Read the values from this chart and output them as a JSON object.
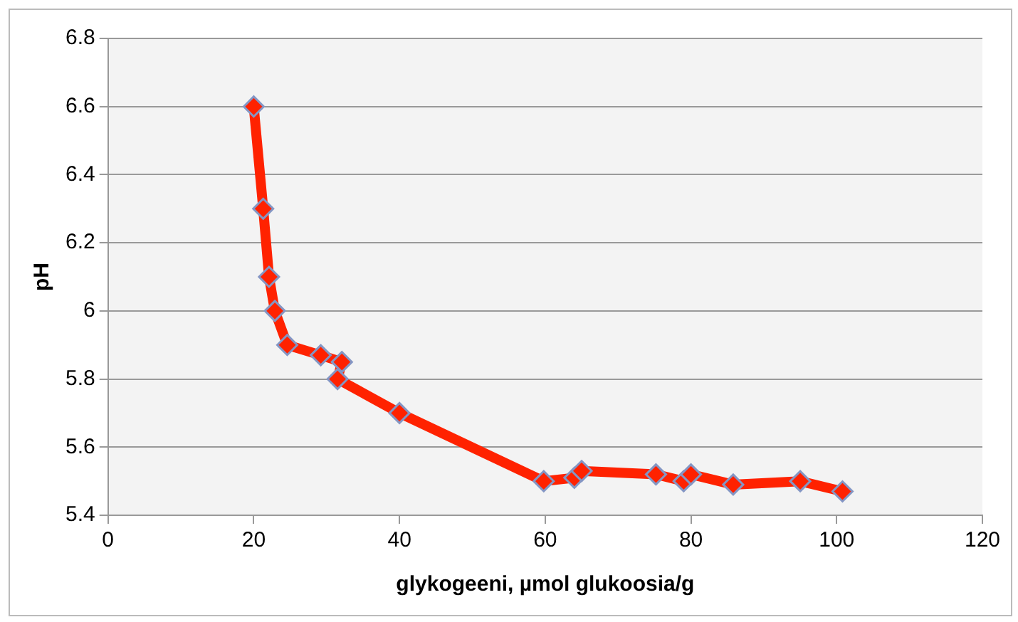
{
  "chart_data": {
    "type": "line",
    "xlabel": "glykogeeni, µmol glukoosia/g",
    "ylabel": "pH",
    "x": [
      20,
      21.3,
      22.1,
      22.9,
      24.6,
      29.2,
      32.1,
      31.5,
      40,
      59.8,
      64,
      65,
      75.2,
      79,
      80,
      85.8,
      95,
      100.8
    ],
    "series": [
      {
        "color": "#ff2200",
        "values": [
          6.6,
          6.3,
          6.1,
          6.0,
          5.9,
          5.87,
          5.85,
          5.8,
          5.7,
          5.5,
          5.51,
          5.53,
          5.52,
          5.5,
          5.52,
          5.49,
          5.5,
          5.47
        ]
      }
    ],
    "xlim": [
      0,
      120
    ],
    "xticks": [
      0,
      20,
      40,
      60,
      80,
      100,
      120
    ],
    "ylim": [
      5.4,
      6.8
    ],
    "yticks": [
      5.4,
      5.6,
      5.8,
      6,
      6.2,
      6.4,
      6.6,
      6.8
    ],
    "grid": "y",
    "legend": false,
    "marker": "diamond",
    "line_style": "solid"
  }
}
